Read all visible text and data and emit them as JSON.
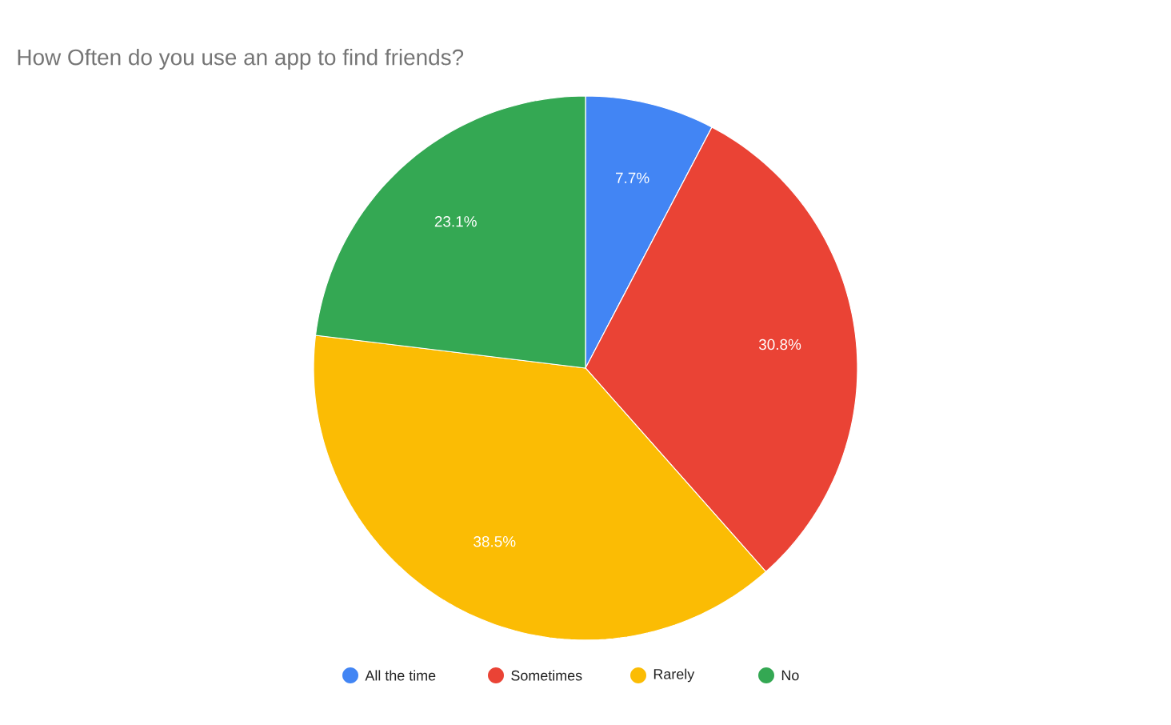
{
  "chart_data": {
    "type": "pie",
    "title": "How Often do you use an app to find friends?",
    "categories": [
      "All the time",
      "Sometimes",
      "Rarely",
      "No"
    ],
    "values": [
      7.7,
      30.8,
      38.5,
      23.1
    ],
    "colors": [
      "#4285f4",
      "#ea4335",
      "#fbbc04",
      "#34a853"
    ],
    "value_labels": [
      "7.7%",
      "30.8%",
      "38.5%",
      "23.1%"
    ],
    "legend": "bottom"
  }
}
